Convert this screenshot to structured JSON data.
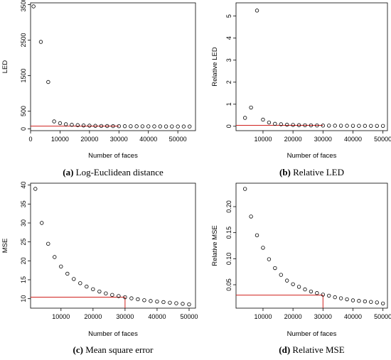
{
  "chart_data": [
    {
      "type": "scatter",
      "ylabel": "LED",
      "xlabel": "Number of faces",
      "caption_label": "(a)",
      "caption_text": " Log-Euclidean distance",
      "xlim": [
        0,
        56000
      ],
      "ylim": [
        -50,
        3550
      ],
      "xticks": [
        0,
        10000,
        20000,
        30000,
        40000,
        50000
      ],
      "xtick_labels": [
        "0",
        "10000",
        "20000",
        "30000",
        "40000",
        "50000"
      ],
      "yticks": [
        0,
        500,
        1500,
        2500,
        3500
      ],
      "ytick_labels": [
        "0",
        "500",
        "1500",
        "2500",
        "3500"
      ],
      "x": [
        1000,
        3500,
        6000,
        8000,
        10000,
        12000,
        14000,
        16000,
        18000,
        20000,
        22000,
        24000,
        26000,
        28000,
        30000,
        32000,
        34000,
        36000,
        38000,
        40000,
        42000,
        44000,
        46000,
        48000,
        50000,
        52000,
        54000
      ],
      "y": [
        3450,
        2450,
        1320,
        210,
        160,
        130,
        115,
        105,
        95,
        90,
        85,
        82,
        80,
        78,
        76,
        75,
        74,
        73,
        72,
        71,
        70,
        70,
        69,
        69,
        68,
        68,
        68
      ],
      "reference": {
        "hline": 78,
        "x_end": 30000
      }
    },
    {
      "type": "scatter",
      "ylabel": "Relative LED",
      "xlabel": "Number of faces",
      "caption_label": "(b)",
      "caption_text": " Relative LED",
      "xlim": [
        1000,
        51500
      ],
      "ylim": [
        -0.2,
        5.6
      ],
      "xticks": [
        10000,
        20000,
        30000,
        40000,
        50000
      ],
      "xtick_labels": [
        "10000",
        "20000",
        "30000",
        "40000",
        "50000"
      ],
      "yticks": [
        0,
        1,
        2,
        3,
        4,
        5
      ],
      "ytick_labels": [
        "0",
        "1",
        "2",
        "3",
        "4",
        "5"
      ],
      "x": [
        4000,
        6000,
        8000,
        10000,
        12000,
        14000,
        16000,
        18000,
        20000,
        22000,
        24000,
        26000,
        28000,
        30000,
        32000,
        34000,
        36000,
        38000,
        40000,
        42000,
        44000,
        46000,
        48000,
        50000
      ],
      "y": [
        0.38,
        0.85,
        5.25,
        0.3,
        0.17,
        0.11,
        0.09,
        0.07,
        0.06,
        0.05,
        0.045,
        0.04,
        0.035,
        0.03,
        0.028,
        0.026,
        0.024,
        0.022,
        0.02,
        0.019,
        0.018,
        0.017,
        0.016,
        0.015
      ],
      "reference": {
        "hline": 0.04,
        "x_end": 30000
      }
    },
    {
      "type": "scatter",
      "ylabel": "MSE",
      "xlabel": "Number of faces",
      "caption_label": "(c)",
      "caption_text": " Mean square error",
      "xlim": [
        500,
        52000
      ],
      "ylim": [
        7.5,
        40.5
      ],
      "xticks": [
        10000,
        20000,
        30000,
        40000,
        50000
      ],
      "xtick_labels": [
        "10000",
        "20000",
        "30000",
        "40000",
        "50000"
      ],
      "yticks": [
        10,
        15,
        20,
        25,
        30,
        35,
        40
      ],
      "ytick_labels": [
        "10",
        "15",
        "20",
        "25",
        "30",
        "35",
        "40"
      ],
      "x": [
        2000,
        4000,
        6000,
        8000,
        10000,
        12000,
        14000,
        16000,
        18000,
        20000,
        22000,
        24000,
        26000,
        28000,
        30000,
        32000,
        34000,
        36000,
        38000,
        40000,
        42000,
        44000,
        46000,
        48000,
        50000
      ],
      "y": [
        39.0,
        30.0,
        24.5,
        21.0,
        18.5,
        16.6,
        15.2,
        14.1,
        13.2,
        12.5,
        11.9,
        11.4,
        11.0,
        10.7,
        10.4,
        10.1,
        9.85,
        9.6,
        9.4,
        9.25,
        9.1,
        8.95,
        8.8,
        8.65,
        8.5
      ],
      "reference": {
        "hline": 10.4,
        "x_end": 30000
      }
    },
    {
      "type": "scatter",
      "ylabel": "Relative MSE",
      "xlabel": "Number of faces",
      "caption_label": "(d)",
      "caption_text": " Relative MSE",
      "xlim": [
        1000,
        51500
      ],
      "ylim": [
        0.005,
        0.245
      ],
      "xticks": [
        10000,
        20000,
        30000,
        40000,
        50000
      ],
      "xtick_labels": [
        "10000",
        "20000",
        "30000",
        "40000",
        "50000"
      ],
      "yticks": [
        0.05,
        0.1,
        0.15,
        0.2
      ],
      "ytick_labels": [
        "0.05",
        "0.10",
        "0.15",
        "0.20"
      ],
      "x": [
        4000,
        6000,
        8000,
        10000,
        12000,
        14000,
        16000,
        18000,
        20000,
        22000,
        24000,
        26000,
        28000,
        30000,
        32000,
        34000,
        36000,
        38000,
        40000,
        42000,
        44000,
        46000,
        48000,
        50000
      ],
      "y": [
        0.234,
        0.181,
        0.145,
        0.121,
        0.099,
        0.082,
        0.069,
        0.058,
        0.051,
        0.046,
        0.041,
        0.037,
        0.034,
        0.031,
        0.029,
        0.026,
        0.024,
        0.022,
        0.02,
        0.019,
        0.018,
        0.017,
        0.016,
        0.014
      ],
      "reference": {
        "hline": 0.03,
        "x_end": 30000
      }
    }
  ]
}
